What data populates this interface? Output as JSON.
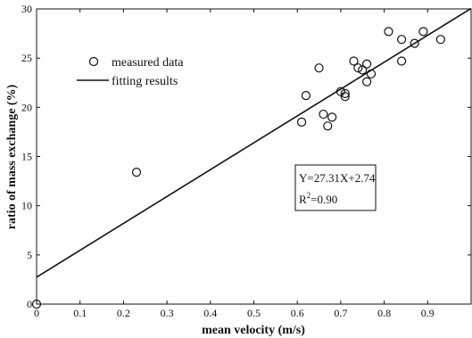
{
  "chart_data": {
    "type": "scatter",
    "xlabel": "mean velocity (m/s)",
    "ylabel": "ratio of mass exchange (%)",
    "xlim": [
      0,
      1
    ],
    "ylim": [
      0,
      30
    ],
    "x_ticks": [
      0,
      0.1,
      0.2,
      0.3,
      0.4,
      0.5,
      0.6,
      0.7,
      0.8,
      0.9
    ],
    "x_tick_labels": [
      "0",
      "0.1",
      "0.2",
      "0.3",
      "0.4",
      "0.5",
      "0.6",
      "0.7",
      "0.8",
      "0.9"
    ],
    "y_ticks": [
      0,
      5,
      10,
      15,
      20,
      25,
      30
    ],
    "y_tick_labels": [
      "0",
      "5",
      "10",
      "15",
      "20",
      "25",
      "30"
    ],
    "grid": false,
    "legend": {
      "placement": "top-left",
      "entries": [
        {
          "label": "measured data",
          "marker": "circle"
        },
        {
          "label": "fitting results",
          "marker": "line"
        }
      ]
    },
    "series": [
      {
        "name": "measured data",
        "style": "hollow-circle",
        "points": [
          [
            0.0,
            0.0
          ],
          [
            0.23,
            13.4
          ],
          [
            0.61,
            18.5
          ],
          [
            0.62,
            21.2
          ],
          [
            0.65,
            24.0
          ],
          [
            0.66,
            19.3
          ],
          [
            0.67,
            18.1
          ],
          [
            0.68,
            19.0
          ],
          [
            0.7,
            21.6
          ],
          [
            0.71,
            21.4
          ],
          [
            0.71,
            21.1
          ],
          [
            0.73,
            24.7
          ],
          [
            0.74,
            24.0
          ],
          [
            0.75,
            23.8
          ],
          [
            0.76,
            22.6
          ],
          [
            0.76,
            24.4
          ],
          [
            0.77,
            23.4
          ],
          [
            0.81,
            27.7
          ],
          [
            0.84,
            26.9
          ],
          [
            0.84,
            24.7
          ],
          [
            0.87,
            26.5
          ],
          [
            0.89,
            27.7
          ],
          [
            0.93,
            26.9
          ]
        ]
      },
      {
        "name": "fitting results",
        "style": "line",
        "slope": 27.31,
        "intercept": 2.74,
        "points": [
          [
            0,
            2.74
          ],
          [
            1,
            30.05
          ]
        ]
      }
    ],
    "annotations": {
      "equation": "Y=27.31X+2.74",
      "r2_prefix": "R",
      "r2_sup": "2",
      "r2_value": "=0.90"
    }
  },
  "colors": {
    "ink": "#111111",
    "background": "#ffffff"
  }
}
